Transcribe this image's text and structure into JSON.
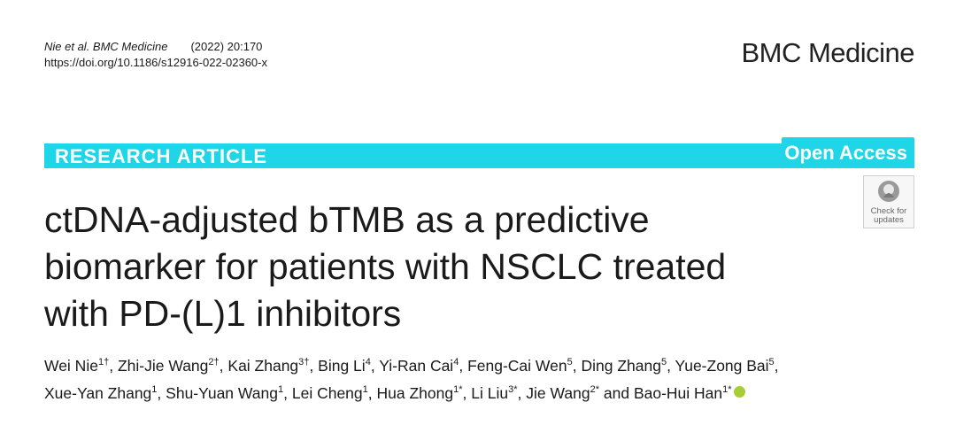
{
  "header": {
    "citation": "Nie et al. BMC Medicine",
    "volume": "(2022) 20:170",
    "doi": "https://doi.org/10.1186/s12916-022-02360-x",
    "journal": "BMC Medicine"
  },
  "banner": {
    "article_type": "RESEARCH ARTICLE",
    "access": "Open Access"
  },
  "badge": {
    "line1": "Check for",
    "line2": "updates"
  },
  "title": [
    "ctDNA-adjusted bTMB as a predictive",
    "biomarker for patients with NSCLC treated",
    "with PD-(L)1 inhibitors"
  ],
  "authors": [
    [
      {
        "name": "Wei Nie",
        "sup": "1†",
        "sep": ","
      },
      {
        "name": "Zhi-Jie Wang",
        "sup": "2†",
        "sep": ","
      },
      {
        "name": "Kai Zhang",
        "sup": "3†",
        "sep": ","
      },
      {
        "name": "Bing Li",
        "sup": "4",
        "sep": ","
      },
      {
        "name": "Yi-Ran Cai",
        "sup": "4",
        "sep": ","
      },
      {
        "name": "Feng-Cai Wen",
        "sup": "5",
        "sep": ","
      },
      {
        "name": "Ding Zhang",
        "sup": "5",
        "sep": ","
      },
      {
        "name": "Yue-Zong Bai",
        "sup": "5",
        "sep": ","
      }
    ],
    [
      {
        "name": "Xue-Yan Zhang",
        "sup": "1",
        "sep": ","
      },
      {
        "name": "Shu-Yuan Wang",
        "sup": "1",
        "sep": ","
      },
      {
        "name": "Lei Cheng",
        "sup": "1",
        "sep": ","
      },
      {
        "name": "Hua Zhong",
        "sup": "1*",
        "sep": ","
      },
      {
        "name": "Li Liu",
        "sup": "3*",
        "sep": ","
      },
      {
        "name": "Jie Wang",
        "sup": "2*",
        "sep": "and"
      },
      {
        "name": "Bao-Hui Han",
        "sup": "1*"
      }
    ]
  ]
}
